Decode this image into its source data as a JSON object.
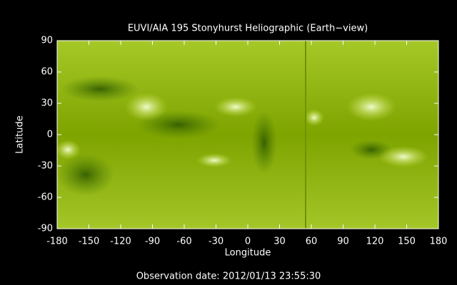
{
  "chart_data": {
    "type": "image",
    "title": "EUVI/AIA 195 Stonyhurst Heliographic (Earth−view)",
    "xlabel": "Longitude",
    "ylabel": "Latitude",
    "xlim": [
      -180,
      180
    ],
    "ylim": [
      -90,
      90
    ],
    "xticks": [
      -180,
      -150,
      -120,
      -90,
      -60,
      -30,
      0,
      30,
      60,
      90,
      120,
      150,
      180
    ],
    "yticks": [
      -90,
      -60,
      -30,
      0,
      30,
      60,
      90
    ],
    "footer": "Observation date: 2012/01/13 23:55:30"
  }
}
